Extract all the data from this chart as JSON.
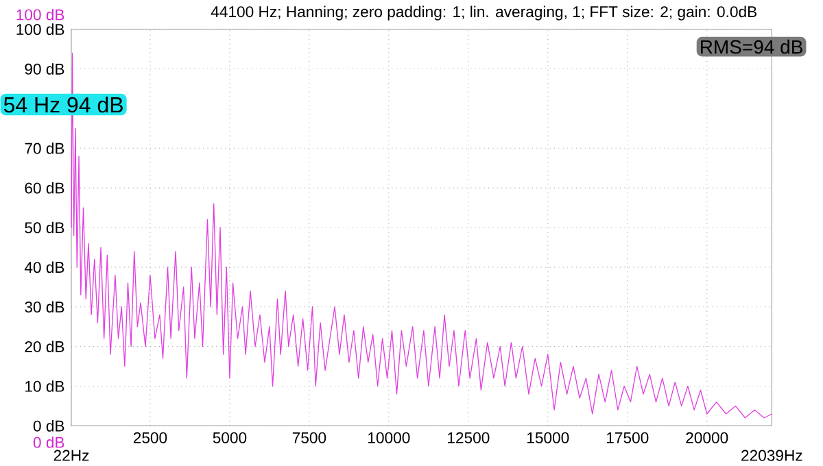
{
  "chart_data": {
    "type": "line",
    "title": "44100 Hz; Hanning; zero padding: 1; lin. averaging, 1; FFT size: 2; gain: 0.0dB",
    "x": [
      22,
      54,
      100,
      150,
      200,
      260,
      320,
      400,
      480,
      560,
      650,
      750,
      850,
      950,
      1050,
      1150,
      1250,
      1400,
      1500,
      1600,
      1700,
      1800,
      1900,
      2000,
      2100,
      2200,
      2350,
      2500,
      2650,
      2800,
      2900,
      3050,
      3150,
      3300,
      3400,
      3550,
      3650,
      3800,
      3900,
      4050,
      4150,
      4300,
      4400,
      4500,
      4600,
      4700,
      4800,
      4900,
      5000,
      5100,
      5250,
      5400,
      5500,
      5650,
      5800,
      5950,
      6100,
      6250,
      6350,
      6500,
      6600,
      6750,
      6850,
      7000,
      7150,
      7300,
      7450,
      7600,
      7700,
      7850,
      8000,
      8150,
      8300,
      8450,
      8600,
      8750,
      8900,
      9050,
      9200,
      9350,
      9500,
      9650,
      9800,
      9950,
      10100,
      10250,
      10400,
      10550,
      10750,
      10900,
      11100,
      11250,
      11450,
      11600,
      11750,
      11900,
      12050,
      12200,
      12400,
      12550,
      12750,
      12900,
      13100,
      13300,
      13500,
      13650,
      13850,
      14000,
      14200,
      14400,
      14600,
      14800,
      15000,
      15200,
      15400,
      15600,
      15800,
      16000,
      16200,
      16400,
      16600,
      16800,
      17000,
      17200,
      17400,
      17600,
      17800,
      18000,
      18200,
      18400,
      18600,
      18800,
      19000,
      19200,
      19400,
      19600,
      19800,
      20000,
      20300,
      20600,
      20900,
      21200,
      21500,
      21800,
      22039
    ],
    "series": [
      {
        "color": "#e040e0",
        "values": [
          50,
          94,
          48,
          75,
          40,
          68,
          33,
          55,
          32,
          46,
          28,
          42,
          26,
          45,
          22,
          43,
          18,
          38,
          22,
          30,
          15,
          36,
          20,
          44,
          25,
          31,
          20,
          38,
          22,
          28,
          17,
          40,
          22,
          44,
          24,
          35,
          12,
          40,
          22,
          36,
          20,
          52,
          30,
          56,
          28,
          50,
          18,
          40,
          12,
          36,
          22,
          30,
          18,
          34,
          20,
          28,
          16,
          25,
          10,
          32,
          18,
          34,
          20,
          28,
          15,
          27,
          14,
          30,
          10,
          26,
          14,
          22,
          30,
          18,
          28,
          16,
          24,
          12,
          25,
          16,
          23,
          10,
          22,
          12,
          24,
          8,
          24,
          15,
          25,
          12,
          24,
          10,
          25,
          12,
          28,
          15,
          24,
          10,
          24,
          12,
          22,
          9,
          21,
          12,
          20,
          10,
          21,
          12,
          20,
          8,
          17,
          10,
          18,
          4,
          16,
          8,
          15,
          7,
          12,
          3,
          13,
          6,
          14,
          4,
          10,
          6,
          15,
          8,
          13,
          6,
          12,
          5,
          11,
          5,
          10,
          4,
          9,
          3,
          6,
          3,
          5,
          2,
          4,
          2,
          3
        ]
      }
    ],
    "xlim": [
      22,
      22039
    ],
    "xticks": [
      2500,
      5000,
      7500,
      10000,
      12500,
      15000,
      17500,
      20000
    ],
    "ylim": [
      0,
      100
    ],
    "yticks": [
      {
        "value": 0,
        "label": "0 dB"
      },
      {
        "value": 10,
        "label": "10 dB"
      },
      {
        "value": 20,
        "label": "20 dB"
      },
      {
        "value": 30,
        "label": "30 dB"
      },
      {
        "value": 40,
        "label": "40 dB"
      },
      {
        "value": 50,
        "label": "50 dB"
      },
      {
        "value": 60,
        "label": "60 dB"
      },
      {
        "value": 70,
        "label": "70 dB"
      },
      {
        "value": 90,
        "label": "90 dB"
      },
      {
        "value": 100,
        "label": "100 dB"
      }
    ],
    "y2lim": [
      0,
      100
    ],
    "y2ticks": [
      {
        "value": 0,
        "label": "0 dB"
      },
      {
        "value": 100,
        "label": "100 dB"
      }
    ],
    "grid": true,
    "marker": "none",
    "line_style": "solid",
    "annotations": [
      "54 Hz  94 dB",
      "RMS=94 dB",
      "22Hz",
      "22039Hz"
    ]
  }
}
